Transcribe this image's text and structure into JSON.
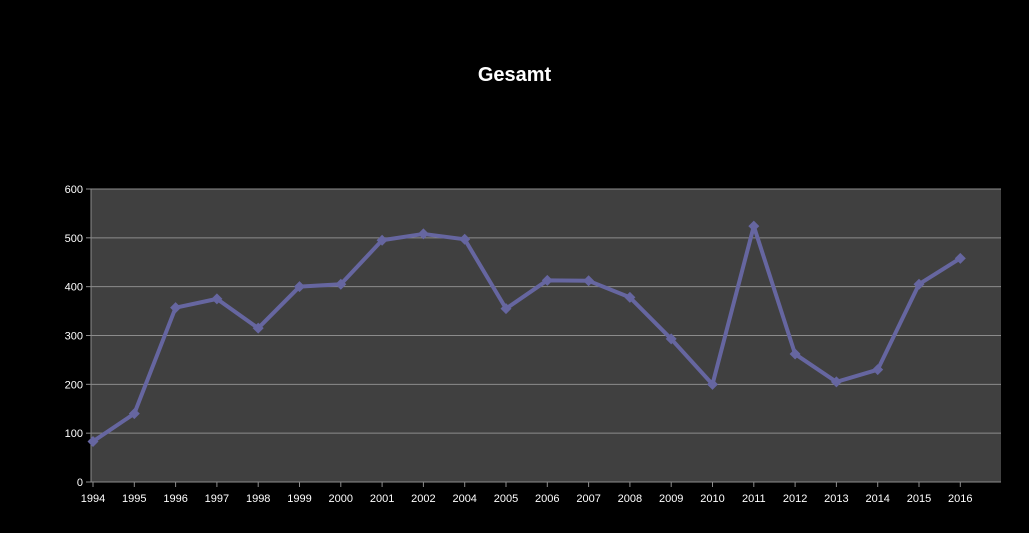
{
  "chart_data": {
    "type": "line",
    "title": "Gesamt",
    "xlabel": "",
    "ylabel": "",
    "categories": [
      "1994",
      "1995",
      "1996",
      "1997",
      "1998",
      "1999",
      "2000",
      "2001",
      "2002",
      "2004",
      "2005",
      "2006",
      "2007",
      "2008",
      "2009",
      "2010",
      "2011",
      "2012",
      "2013",
      "2014",
      "2015",
      "2016"
    ],
    "series": [
      {
        "values": [
          83,
          140,
          357,
          375,
          315,
          400,
          405,
          495,
          508,
          497,
          355,
          413,
          412,
          378,
          293,
          200,
          524,
          262,
          205,
          230,
          405,
          458
        ]
      }
    ],
    "ylim": [
      0,
      600
    ],
    "yticks": [
      "0",
      "100",
      "200",
      "300",
      "400",
      "500",
      "600"
    ],
    "grid": true,
    "legend": "none",
    "colors": {
      "background": "#000000",
      "plot_area": "#404040",
      "line": "#6666a0",
      "grid": "#8c8c8c",
      "text": "#ffffff"
    }
  }
}
